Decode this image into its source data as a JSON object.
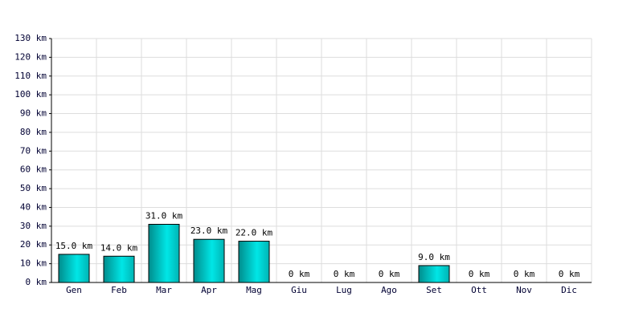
{
  "chart_data": {
    "type": "bar",
    "categories": [
      "Gen",
      "Feb",
      "Mar",
      "Apr",
      "Mag",
      "Giu",
      "Lug",
      "Ago",
      "Set",
      "Ott",
      "Nov",
      "Dic"
    ],
    "values": [
      15,
      14,
      31,
      23,
      22,
      0,
      0,
      0,
      9,
      0,
      0,
      0
    ],
    "value_labels": [
      "15.0 km",
      "14.0 km",
      "31.0 km",
      "23.0 km",
      "22.0 km",
      "0 km",
      "0 km",
      "0 km",
      "9.0 km",
      "0 km",
      "0 km",
      "0 km"
    ],
    "color": "#00cccc",
    "ylim": [
      0,
      130
    ],
    "yticks": [
      {
        "value": 0,
        "label": "0 km"
      },
      {
        "value": 10,
        "label": "10 km"
      },
      {
        "value": 20,
        "label": "20 km"
      },
      {
        "value": 30,
        "label": "30 km"
      },
      {
        "value": 40,
        "label": "40 km"
      },
      {
        "value": 50,
        "label": "50 km"
      },
      {
        "value": 60,
        "label": "60 km"
      },
      {
        "value": 70,
        "label": "70 km"
      },
      {
        "value": 80,
        "label": "80 km"
      },
      {
        "value": 90,
        "label": "90 km"
      },
      {
        "value": 100,
        "label": "100 km"
      },
      {
        "value": 110,
        "label": "110 km"
      },
      {
        "value": 120,
        "label": "120 km"
      },
      {
        "value": 130,
        "label": "130 km"
      }
    ],
    "grid": true
  }
}
